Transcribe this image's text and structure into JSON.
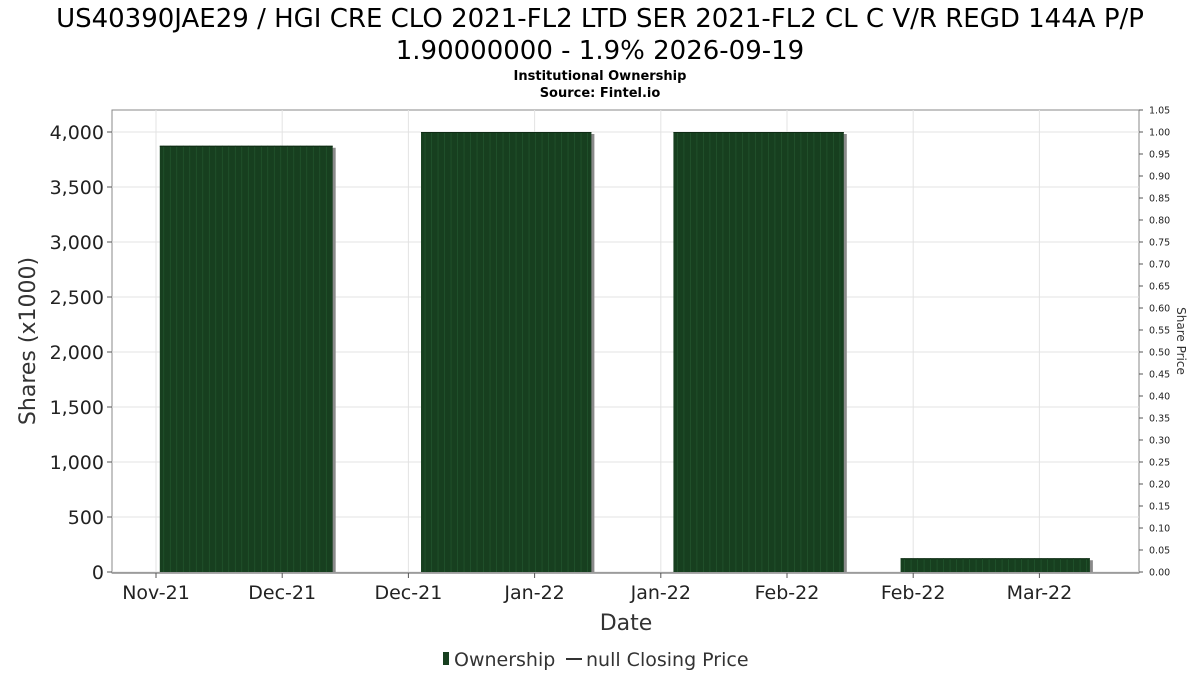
{
  "chart_data": {
    "type": "bar",
    "title_line1": "US40390JAE29 / HGI CRE CLO 2021-FL2 LTD SER 2021-FL2 CL C V/R REGD 144A P/P",
    "title_line2": "1.90000000 - 1.9% 2026-09-19",
    "subtitle_line1": "Institutional Ownership",
    "subtitle_line2": "Source: Fintel.io",
    "xlabel": "Date",
    "ylabel": "Shares (x1000)",
    "y2label": "Share Price",
    "x_tick_labels": [
      "Nov-21",
      "Dec-21",
      "Dec-21",
      "Jan-22",
      "Jan-22",
      "Feb-22",
      "Feb-22",
      "Mar-22"
    ],
    "ylim": [
      0,
      4200
    ],
    "y_ticks": [
      "0",
      "500",
      "1,000",
      "1,500",
      "2,000",
      "2,500",
      "3,000",
      "3,500",
      "4,000"
    ],
    "y_tick_values": [
      0,
      500,
      1000,
      1500,
      2000,
      2500,
      3000,
      3500,
      4000
    ],
    "y2lim": [
      0,
      1.05
    ],
    "y2_ticks": [
      "0.00",
      "0.05",
      "0.10",
      "0.15",
      "0.20",
      "0.25",
      "0.30",
      "0.35",
      "0.40",
      "0.45",
      "0.50",
      "0.55",
      "0.60",
      "0.65",
      "0.70",
      "0.75",
      "0.80",
      "0.85",
      "0.90",
      "0.95",
      "1.00",
      "1.05"
    ],
    "series": [
      {
        "name": "Ownership",
        "type": "bar",
        "color": "#173f1f",
        "values": [
          3875,
          4000,
          4000,
          125
        ],
        "x_start_tick": [
          0.03,
          2.1,
          4.1,
          5.9
        ],
        "x_end_tick": [
          1.4,
          3.45,
          5.45,
          7.4
        ]
      }
    ],
    "legend": {
      "position": "bottom",
      "entries": [
        "Ownership",
        "null Closing Price"
      ]
    },
    "grid": true
  }
}
